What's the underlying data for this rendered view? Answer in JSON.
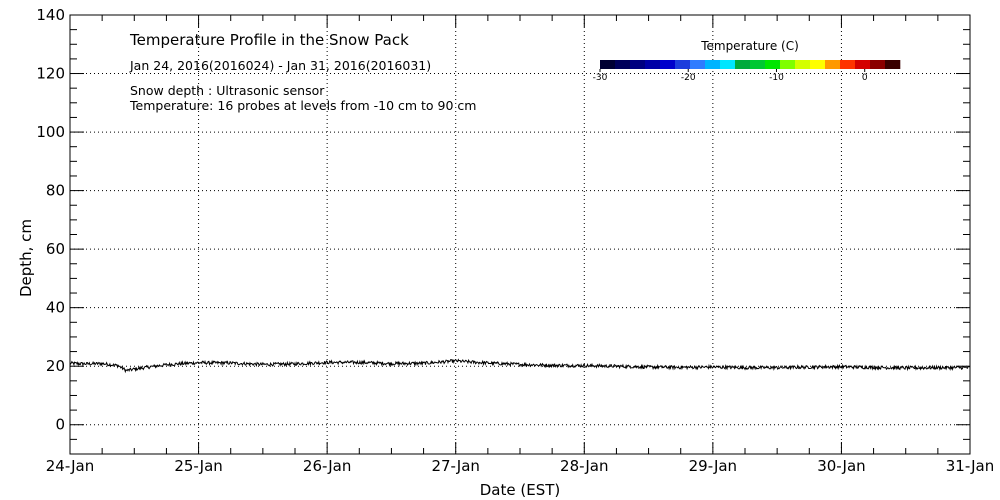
{
  "chart_data": {
    "type": "line",
    "title": "Temperature Profile in the Snow Pack",
    "subtitle": "Jan 24, 2016(2016024) - Jan 31, 2016(2016031)",
    "annotations": [
      "Snow depth : Ultrasonic sensor",
      "Temperature: 16 probes at levels from -10 cm to 90 cm"
    ],
    "xlabel": "Date (EST)",
    "ylabel": "Depth, cm",
    "x_tick_labels": [
      "24-Jan",
      "25-Jan",
      "26-Jan",
      "27-Jan",
      "28-Jan",
      "29-Jan",
      "30-Jan",
      "31-Jan"
    ],
    "xlim": [
      0,
      7
    ],
    "x_unit_note": "days",
    "ylim": [
      -10,
      140
    ],
    "y_tick_labels": [
      "0",
      "20",
      "40",
      "60",
      "80",
      "100",
      "120",
      "140"
    ],
    "y_ticks": [
      0,
      20,
      40,
      60,
      80,
      100,
      120,
      140
    ],
    "grid": true,
    "series": [
      {
        "x_labels_ref": "x_tick_labels",
        "color": "#000000",
        "points": [
          [
            "24-Jan 00:00",
            21.0
          ],
          [
            "24-Jan 03:00",
            20.8
          ],
          [
            "24-Jan 06:00",
            20.9
          ],
          [
            "24-Jan 09:00",
            20.2
          ],
          [
            "24-Jan 10:30",
            18.5
          ],
          [
            "24-Jan 12:00",
            19.0
          ],
          [
            "24-Jan 15:00",
            19.8
          ],
          [
            "24-Jan 18:00",
            20.5
          ],
          [
            "24-Jan 21:00",
            20.9
          ],
          [
            "25-Jan 00:00",
            21.2
          ],
          [
            "25-Jan 06:00",
            21.1
          ],
          [
            "25-Jan 12:00",
            20.6
          ],
          [
            "25-Jan 18:00",
            20.8
          ],
          [
            "26-Jan 00:00",
            21.3
          ],
          [
            "26-Jan 06:00",
            21.3
          ],
          [
            "26-Jan 12:00",
            20.9
          ],
          [
            "26-Jan 18:00",
            21.0
          ],
          [
            "27-Jan 00:00",
            21.8
          ],
          [
            "27-Jan 03:00",
            21.4
          ],
          [
            "27-Jan 06:00",
            21.1
          ],
          [
            "27-Jan 12:00",
            20.6
          ],
          [
            "27-Jan 18:00",
            20.3
          ],
          [
            "28-Jan 00:00",
            20.2
          ],
          [
            "28-Jan 06:00",
            20.0
          ],
          [
            "28-Jan 12:00",
            19.7
          ],
          [
            "28-Jan 18:00",
            19.6
          ],
          [
            "29-Jan 00:00",
            19.7
          ],
          [
            "29-Jan 06:00",
            19.5
          ],
          [
            "29-Jan 12:00",
            19.5
          ],
          [
            "29-Jan 18:00",
            19.7
          ],
          [
            "30-Jan 00:00",
            19.8
          ],
          [
            "30-Jan 06:00",
            19.6
          ],
          [
            "30-Jan 12:00",
            19.4
          ],
          [
            "30-Jan 18:00",
            19.5
          ],
          [
            "31-Jan 00:00",
            19.5
          ]
        ]
      }
    ],
    "colorbar": {
      "title": "Temperature (C)",
      "tick_labels": [
        "-30",
        "-20",
        "-10",
        "0"
      ],
      "tick_values": [
        -30,
        -20,
        -10,
        0
      ],
      "range": [
        -30,
        4
      ],
      "colors": [
        "#000033",
        "#00005a",
        "#000080",
        "#0000a6",
        "#0000cc",
        "#1c3cdc",
        "#2f7cff",
        "#00b4ff",
        "#00e6ff",
        "#00aa3c",
        "#00c832",
        "#00e600",
        "#7fff00",
        "#d4ff00",
        "#ffff00",
        "#ff9900",
        "#ff3300",
        "#d40000",
        "#8b0000",
        "#3a0000"
      ]
    },
    "legend": "none"
  }
}
